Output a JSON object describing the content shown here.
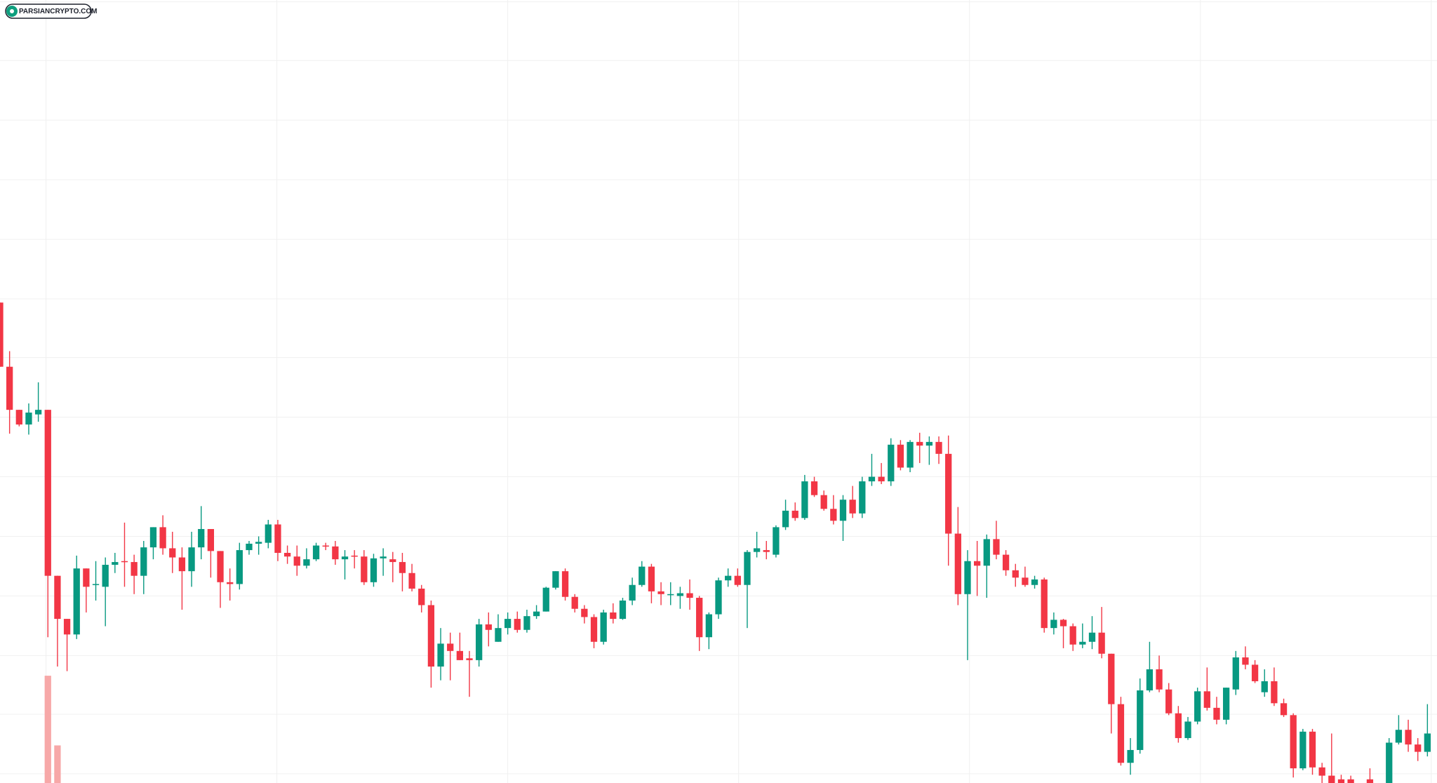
{
  "chart_data": {
    "type": "candlestick",
    "watermark": "PARSIANCRYPTO.COM",
    "up_color": "#089981",
    "down_color": "#f23645",
    "volume_color": "#f7a8a8",
    "grid": true,
    "grid_color": "#f0f0f0",
    "xlim": [
      0,
      150
    ],
    "ylim": [
      146,
      1000
    ],
    "xticks": [
      4.8,
      28.9,
      53,
      77.1,
      101.2,
      125.3,
      149.4
    ],
    "yticks": [
      998,
      934,
      869,
      804,
      739,
      674,
      610,
      545,
      480,
      415,
      350,
      285,
      221,
      156
    ],
    "x": [
      0,
      1,
      2,
      3,
      4,
      5,
      6,
      7,
      8,
      9,
      10,
      11,
      12,
      13,
      14,
      15,
      16,
      17,
      18,
      19,
      20,
      21,
      22,
      23,
      24,
      25,
      26,
      27,
      28,
      29,
      30,
      31,
      32,
      33,
      34,
      35,
      36,
      37,
      38,
      39,
      40,
      41,
      42,
      43,
      44,
      45,
      46,
      47,
      48,
      49,
      50,
      51,
      52,
      53,
      54,
      55,
      56,
      57,
      58,
      59,
      60,
      61,
      62,
      63,
      64,
      65,
      66,
      67,
      68,
      69,
      70,
      71,
      72,
      73,
      74,
      75,
      76,
      77,
      78,
      79,
      80,
      81,
      82,
      83,
      84,
      85,
      86,
      87,
      88,
      89,
      90,
      91,
      92,
      93,
      94,
      95,
      96,
      97,
      98,
      99,
      100,
      101,
      102,
      103,
      104,
      105,
      106,
      107,
      108,
      109,
      110,
      111,
      112,
      113,
      114,
      115,
      116,
      117,
      118,
      119,
      120,
      121,
      122,
      123,
      124,
      125,
      126,
      127,
      128,
      129,
      130,
      131,
      132,
      133,
      134,
      135,
      136,
      137,
      138,
      139,
      140,
      141,
      143,
      145,
      146,
      147,
      148,
      149
    ],
    "open": [
      670,
      600,
      553,
      537,
      548,
      553,
      372,
      325,
      308,
      380,
      362,
      360,
      384,
      388,
      387,
      372,
      403,
      425,
      402,
      392,
      377,
      403,
      423,
      399,
      365,
      363,
      400,
      407,
      408,
      428,
      397,
      393,
      383,
      390,
      405,
      404,
      390,
      394,
      393,
      365,
      391,
      390,
      387,
      375,
      358,
      340,
      273,
      298,
      290,
      282,
      280,
      319,
      300,
      315,
      325,
      313,
      328,
      333,
      359,
      377,
      349,
      336,
      327,
      300,
      332,
      325,
      345,
      362,
      382,
      355,
      352,
      350,
      353,
      348,
      305,
      330,
      367,
      372,
      362,
      398,
      400,
      395,
      425,
      443,
      435,
      475,
      460,
      445,
      432,
      455,
      440,
      475,
      480,
      475,
      515,
      490,
      518,
      514,
      518,
      505,
      418,
      352,
      388,
      383,
      412,
      395,
      378,
      370,
      362,
      368,
      315,
      324,
      317,
      297,
      300,
      310,
      287,
      232,
      168,
      182,
      247,
      270,
      248,
      222,
      195,
      213,
      246,
      228,
      215,
      248,
      283,
      275,
      245,
      257,
      233,
      220,
      162,
      202,
      163,
      154,
      150,
      150,
      150,
      146,
      190,
      204,
      188,
      180
    ],
    "high": [
      670,
      617,
      553,
      560,
      583,
      553,
      372,
      325,
      394,
      380,
      388,
      392,
      397,
      430,
      395,
      410,
      425,
      438,
      420,
      403,
      420,
      448,
      423,
      399,
      380,
      408,
      410,
      415,
      433,
      433,
      405,
      405,
      402,
      408,
      408,
      410,
      400,
      400,
      400,
      396,
      402,
      398,
      397,
      385,
      362,
      345,
      315,
      310,
      310,
      290,
      325,
      332,
      330,
      332,
      333,
      335,
      340,
      360,
      377,
      380,
      352,
      340,
      330,
      335,
      342,
      348,
      370,
      388,
      385,
      365,
      365,
      360,
      368,
      350,
      332,
      370,
      380,
      380,
      400,
      420,
      410,
      427,
      455,
      452,
      482,
      480,
      465,
      460,
      460,
      470,
      480,
      505,
      495,
      522,
      520,
      520,
      528,
      524,
      524,
      525,
      447,
      400,
      410,
      417,
      432,
      400,
      385,
      382,
      372,
      370,
      332,
      325,
      320,
      320,
      328,
      338,
      287,
      240,
      195,
      260,
      300,
      285,
      255,
      230,
      218,
      250,
      272,
      240,
      250,
      290,
      295,
      280,
      270,
      272,
      238,
      222,
      205,
      205,
      168,
      200,
      155,
      154,
      162,
      195,
      220,
      215,
      195,
      232
    ],
    "low": [
      600,
      527,
      535,
      526,
      540,
      305,
      273,
      268,
      303,
      332,
      345,
      317,
      375,
      360,
      352,
      352,
      390,
      395,
      375,
      335,
      360,
      390,
      370,
      337,
      345,
      357,
      395,
      395,
      402,
      388,
      385,
      372,
      380,
      388,
      400,
      384,
      368,
      380,
      362,
      360,
      372,
      365,
      355,
      355,
      332,
      250,
      258,
      258,
      280,
      240,
      273,
      295,
      300,
      308,
      310,
      310,
      325,
      333,
      357,
      345,
      332,
      320,
      293,
      297,
      320,
      324,
      340,
      360,
      342,
      340,
      340,
      336,
      335,
      290,
      292,
      325,
      360,
      360,
      315,
      392,
      390,
      392,
      422,
      432,
      433,
      458,
      443,
      428,
      410,
      435,
      435,
      470,
      472,
      470,
      487,
      485,
      495,
      493,
      494,
      383,
      340,
      280,
      350,
      348,
      390,
      372,
      360,
      360,
      358,
      310,
      308,
      293,
      290,
      293,
      292,
      282,
      200,
      165,
      155,
      178,
      245,
      245,
      220,
      190,
      193,
      210,
      225,
      210,
      210,
      242,
      270,
      255,
      240,
      230,
      218,
      152,
      160,
      155,
      146,
      146,
      146,
      146,
      146,
      146,
      188,
      180,
      170,
      175
    ],
    "close": [
      600,
      553,
      537,
      550,
      553,
      372,
      325,
      308,
      380,
      360,
      363,
      384,
      387,
      387,
      372,
      403,
      425,
      402,
      392,
      377,
      403,
      423,
      399,
      365,
      363,
      400,
      407,
      409,
      428,
      397,
      393,
      383,
      390,
      405,
      404,
      390,
      393,
      393,
      365,
      391,
      393,
      387,
      375,
      358,
      340,
      273,
      298,
      290,
      280,
      280,
      319,
      313,
      315,
      325,
      313,
      328,
      333,
      359,
      377,
      349,
      336,
      327,
      300,
      332,
      325,
      345,
      362,
      382,
      355,
      352,
      352,
      353,
      348,
      305,
      330,
      367,
      372,
      362,
      398,
      402,
      398,
      425,
      443,
      435,
      475,
      460,
      445,
      432,
      455,
      440,
      475,
      480,
      475,
      515,
      490,
      518,
      514,
      518,
      505,
      418,
      352,
      388,
      383,
      412,
      395,
      378,
      370,
      362,
      368,
      315,
      324,
      317,
      297,
      300,
      310,
      287,
      232,
      168,
      182,
      247,
      270,
      248,
      222,
      195,
      213,
      246,
      228,
      215,
      250,
      283,
      275,
      257,
      257,
      233,
      220,
      162,
      202,
      163,
      154,
      146,
      146,
      146,
      146,
      190,
      204,
      188,
      180,
      200
    ],
    "volume": {
      "x": [
        5,
        6
      ],
      "values": [
        117,
        41
      ],
      "ylim": [
        0,
        854
      ]
    }
  }
}
